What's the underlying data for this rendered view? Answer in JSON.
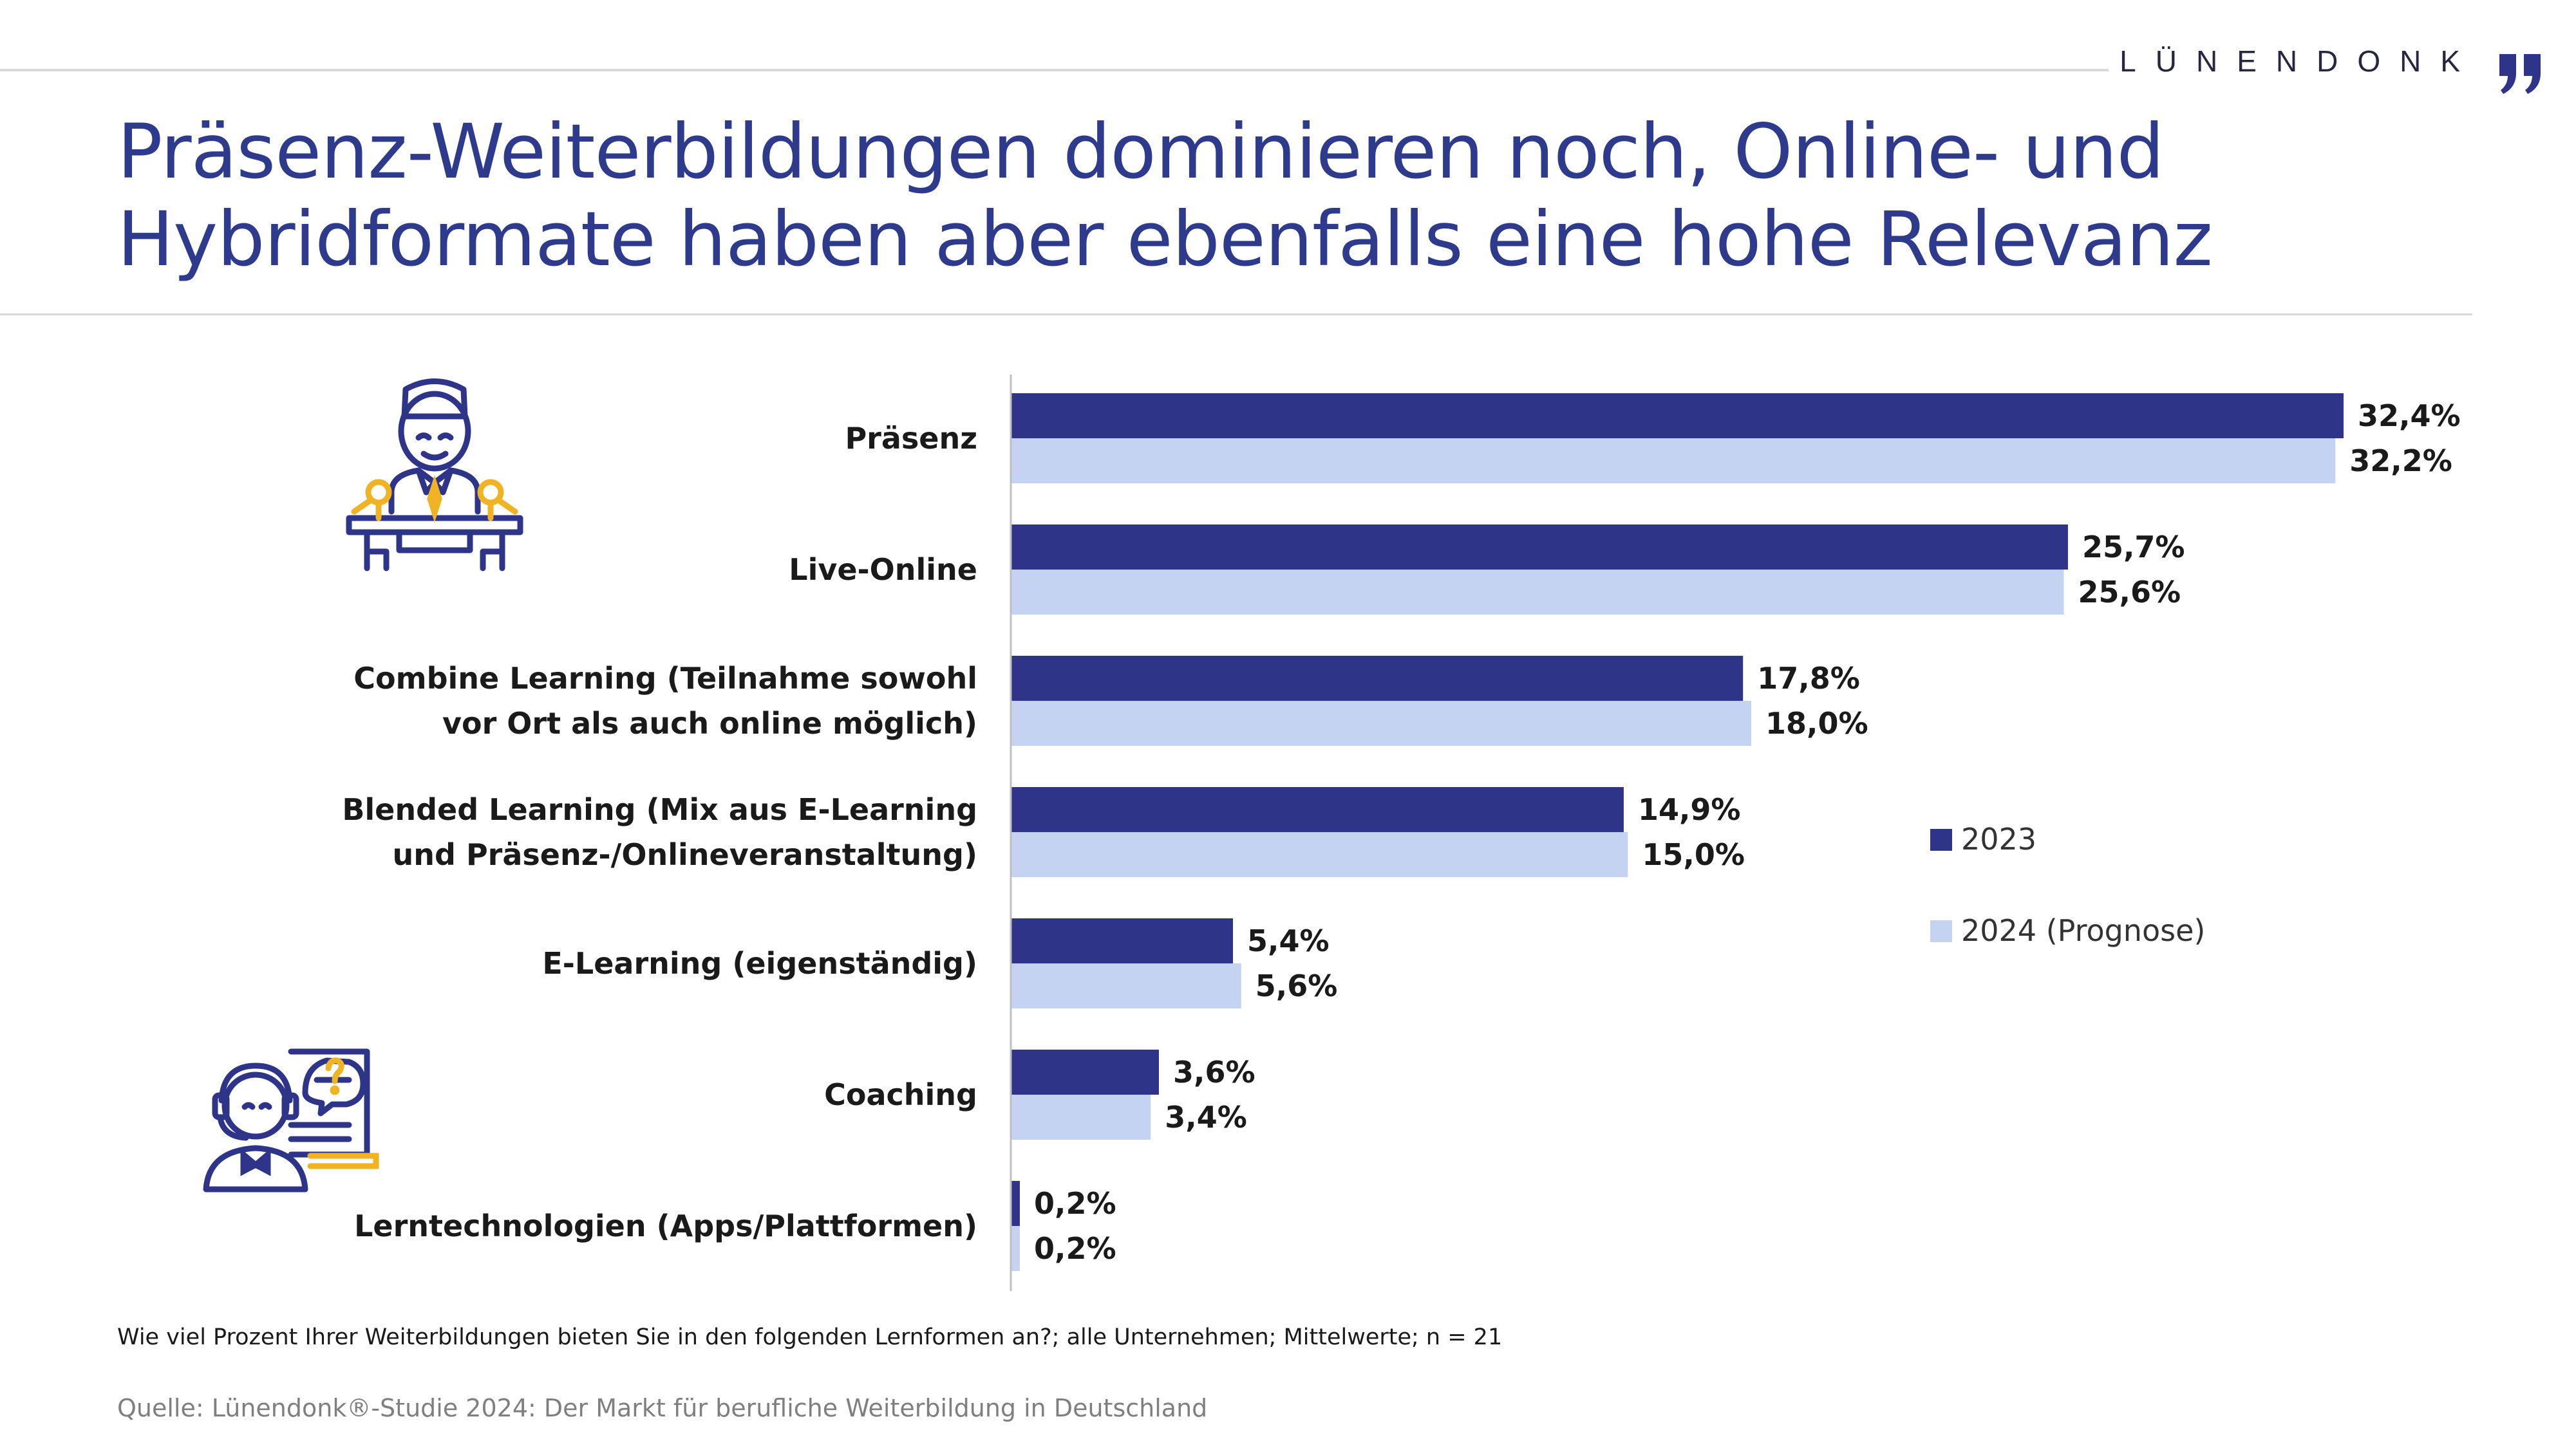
{
  "brand": {
    "name": "LÜNENDONK"
  },
  "title": {
    "line1": "Präsenz-Weiterbildungen dominieren noch, Online- und",
    "line2": "Hybridformate haben aber ebenfalls eine hohe Relevanz"
  },
  "footer": {
    "question": "Wie viel Prozent Ihrer Weiterbildungen bieten Sie in den folgenden Lernformen an?; alle Unternehmen; Mittelwerte; n = 21",
    "source": "Quelle: Lünendonk®-Studie 2024: Der Markt für berufliche Weiterbildung in Deutschland"
  },
  "icons": {
    "top": "presenter-at-podium-icon",
    "bottom": "online-coach-headset-icon"
  },
  "colors": {
    "series2023": "#2e3589",
    "series2024": "#c5d3f2",
    "title": "#2e3a8c",
    "accent": "#f0b323"
  },
  "chart_data": {
    "type": "bar",
    "orientation": "horizontal",
    "categories": [
      [
        "Präsenz"
      ],
      [
        "Live-Online"
      ],
      [
        "Combine Learning (Teilnahme sowohl",
        "vor Ort als auch online möglich)"
      ],
      [
        "Blended Learning (Mix aus E-Learning",
        "und Präsenz-/Onlineveranstaltung)"
      ],
      [
        "E-Learning (eigenständig)"
      ],
      [
        "Coaching"
      ],
      [
        "Lerntechnologien (Apps/Plattformen)"
      ]
    ],
    "series": [
      {
        "name": "2023",
        "color": "#2e3589",
        "values": [
          32.4,
          25.7,
          17.8,
          14.9,
          5.4,
          3.6,
          0.2
        ],
        "labels": [
          "32,4%",
          "25,7%",
          "17,8%",
          "14,9%",
          "5,4%",
          "3,6%",
          "0,2%"
        ]
      },
      {
        "name": "2024 (Prognose)",
        "color": "#c5d3f2",
        "values": [
          32.2,
          25.6,
          18.0,
          15.0,
          5.6,
          3.4,
          0.2
        ],
        "labels": [
          "32,2%",
          "25,6%",
          "18,0%",
          "15,0%",
          "5,6%",
          "3,4%",
          "0,2%"
        ]
      }
    ],
    "xlim": [
      0,
      35
    ],
    "grid": false,
    "legend_position": "right-middle"
  }
}
